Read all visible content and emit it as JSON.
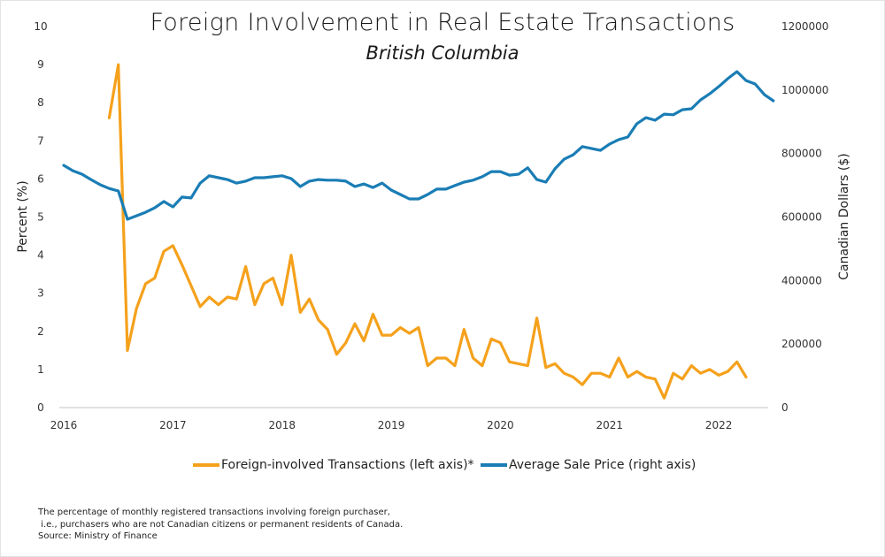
{
  "chart_data": {
    "type": "line",
    "title": "Foreign Involvement in Real Estate Transactions",
    "subtitle": "British Columbia",
    "xlabel": "",
    "ylabel_left": "Percent (%)",
    "ylabel_right": "Canadian Dollars ($)",
    "x_ticks": [
      "2016",
      "2017",
      "2018",
      "2019",
      "2020",
      "2021",
      "2022"
    ],
    "x_start": "2016-01",
    "x_unit": "month",
    "ylim_left": [
      0,
      10
    ],
    "yticks_left": [
      "0",
      "1",
      "2",
      "3",
      "4",
      "5",
      "6",
      "7",
      "8",
      "9",
      "10"
    ],
    "ylim_right": [
      0,
      1200000
    ],
    "yticks_right": [
      "0",
      "200000",
      "400000",
      "600000",
      "800000",
      "1000000",
      "1200000"
    ],
    "grid": false,
    "legend_position": "bottom",
    "series": [
      {
        "name": "Foreign-involved Transactions (left axis)*",
        "axis": "left",
        "color": "#f5a11c",
        "start_month_index": 5,
        "values": [
          7.6,
          9.0,
          1.5,
          2.6,
          3.25,
          3.4,
          4.1,
          4.25,
          3.75,
          3.2,
          2.65,
          2.9,
          2.7,
          2.9,
          2.85,
          3.7,
          2.7,
          3.25,
          3.4,
          2.7,
          4.0,
          2.5,
          2.85,
          2.3,
          2.05,
          1.4,
          1.7,
          2.2,
          1.75,
          2.45,
          1.9,
          1.9,
          2.1,
          1.95,
          2.1,
          1.1,
          1.3,
          1.3,
          1.1,
          2.05,
          1.3,
          1.1,
          1.8,
          1.7,
          1.2,
          1.15,
          1.1,
          2.35,
          1.05,
          1.15,
          0.9,
          0.8,
          0.6,
          0.9,
          0.9,
          0.8,
          1.3,
          0.8,
          0.95,
          0.8,
          0.75,
          0.25,
          0.9,
          0.75,
          1.1,
          0.9,
          1.0,
          0.85,
          0.95,
          1.2,
          0.8
        ]
      },
      {
        "name": "Average Sale Price (right axis)",
        "axis": "right",
        "color": "#1a7db5",
        "start_month_index": 0,
        "values": [
          763000,
          746000,
          735000,
          718000,
          702000,
          690000,
          682000,
          593000,
          604000,
          615000,
          629000,
          649000,
          632000,
          663000,
          660000,
          707000,
          730000,
          724000,
          718000,
          707000,
          713000,
          724000,
          724000,
          727000,
          730000,
          721000,
          696000,
          713000,
          718000,
          716000,
          716000,
          713000,
          696000,
          704000,
          693000,
          707000,
          685000,
          671000,
          657000,
          657000,
          671000,
          688000,
          688000,
          699000,
          710000,
          716000,
          727000,
          743000,
          743000,
          732000,
          735000,
          755000,
          718000,
          710000,
          752000,
          782000,
          796000,
          822000,
          816000,
          810000,
          830000,
          844000,
          852000,
          894000,
          913000,
          905000,
          924000,
          922000,
          938000,
          941000,
          969000,
          988000,
          1011000,
          1036000,
          1058000,
          1030000,
          1019000,
          986000,
          966000
        ]
      }
    ]
  },
  "legend": {
    "items": [
      {
        "label": "Foreign-involved Transactions (left axis)*",
        "color": "#f5a11c"
      },
      {
        "label": "Average Sale Price (right axis)",
        "color": "#1a7db5"
      }
    ]
  },
  "footnote": {
    "lines": [
      "The percentage of monthly registered transactions involving foreign purchaser,",
      " i.e., purchasers who are not Canadian citizens or permanent residents of Canada.",
      "Source: Ministry of Finance"
    ]
  }
}
